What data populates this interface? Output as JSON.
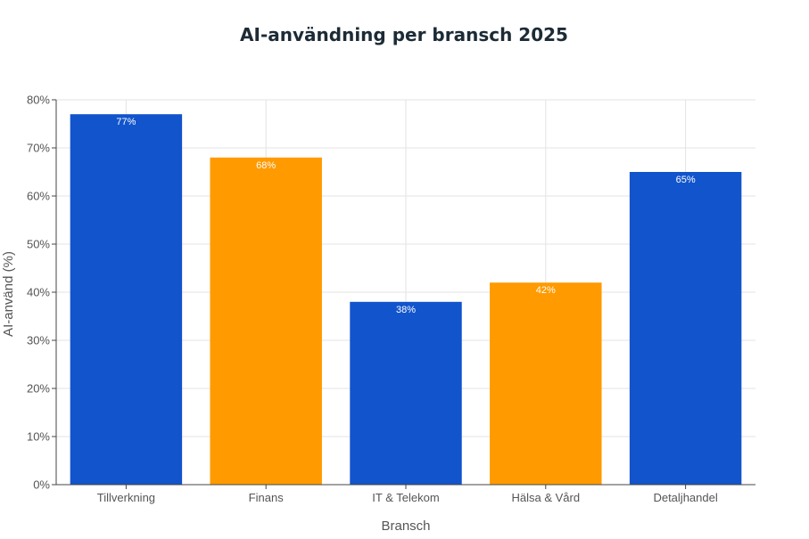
{
  "chart_data": {
    "type": "bar",
    "title": "AI-användning per bransch 2025",
    "xlabel": "Bransch",
    "ylabel": "AI-använd (%)",
    "categories": [
      "Tillverkning",
      "Finans",
      "IT & Telekom",
      "Hälsa & Vård",
      "Detaljhandel"
    ],
    "values": [
      77,
      68,
      38,
      42,
      65
    ],
    "data_labels": [
      "77%",
      "68%",
      "38%",
      "42%",
      "65%"
    ],
    "bar_colors": [
      "#1254cc",
      "#ff9a00",
      "#1254cc",
      "#ff9a00",
      "#1254cc"
    ],
    "ylim": [
      0,
      80
    ],
    "yticks": [
      0,
      10,
      20,
      30,
      40,
      50,
      60,
      70,
      80
    ],
    "ytick_labels": [
      "0%",
      "10%",
      "20%",
      "30%",
      "40%",
      "50%",
      "60%",
      "70%",
      "80%"
    ],
    "grid": true,
    "legend": "none"
  }
}
